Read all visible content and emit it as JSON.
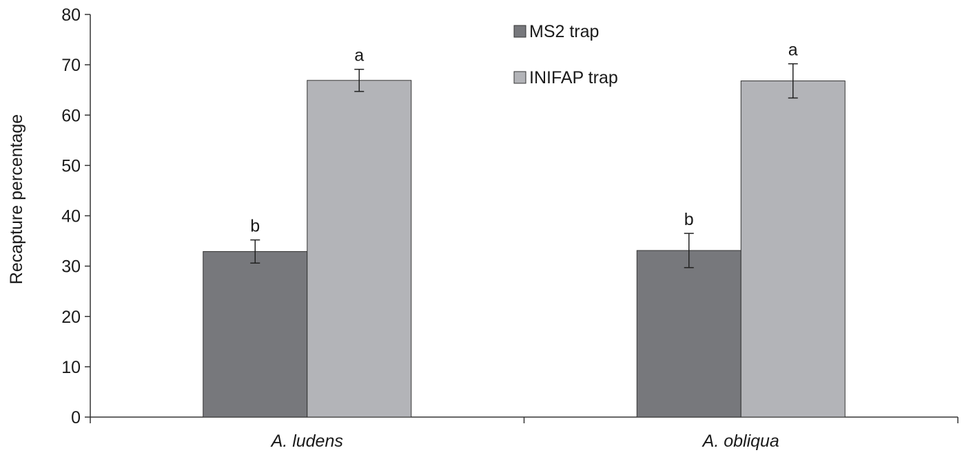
{
  "chart_data": {
    "type": "bar",
    "categories": [
      "A. ludens",
      "A. obliqua"
    ],
    "series": [
      {
        "name": "MS2 trap",
        "values": [
          32.9,
          33.1
        ],
        "errors": [
          2.3,
          3.4
        ],
        "color": "#77787c",
        "labels": [
          "b",
          "b"
        ]
      },
      {
        "name": "INIFAP trap",
        "values": [
          66.9,
          66.8
        ],
        "errors": [
          2.2,
          3.4
        ],
        "color": "#b3b4b8",
        "labels": [
          "a",
          "a"
        ]
      }
    ],
    "xlabel": "",
    "ylabel": "Recapture percentage",
    "ylim": [
      0,
      80
    ],
    "yticks": [
      0,
      10,
      20,
      30,
      40,
      50,
      60,
      70,
      80
    ],
    "grid": false,
    "legend_position": "top-center"
  }
}
